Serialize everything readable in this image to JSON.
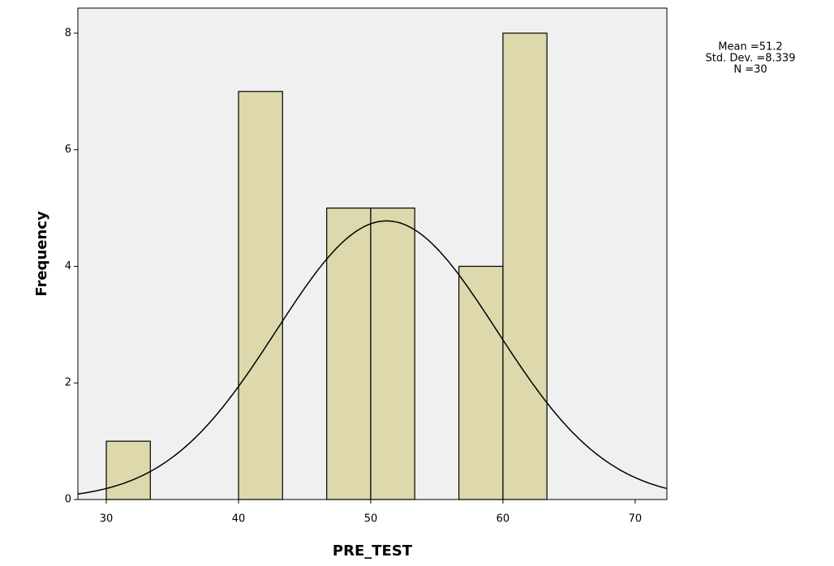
{
  "chart_data": {
    "type": "histogram",
    "x_label": "PRE_TEST",
    "y_label": "Frequency",
    "bins": [
      30,
      33.33,
      36.67,
      40,
      43.33,
      46.67,
      50,
      53.33,
      56.67,
      60,
      63.33
    ],
    "values": [
      1,
      0,
      0,
      7,
      0,
      5,
      5,
      0,
      4,
      8
    ],
    "color": "#d9d5a0",
    "xlim": [
      27.85,
      72.4
    ],
    "xticks": [
      30,
      40,
      50,
      60,
      70
    ],
    "ylim": [
      0,
      8.43
    ],
    "yticks": [
      0,
      2,
      4,
      6,
      8
    ],
    "normal_curve": {
      "mean": 51.2,
      "std_dev": 8.339,
      "n": 30
    },
    "annotations": [
      "Mean =51.2",
      "Std. Dev. =8.339",
      "N =30"
    ]
  }
}
